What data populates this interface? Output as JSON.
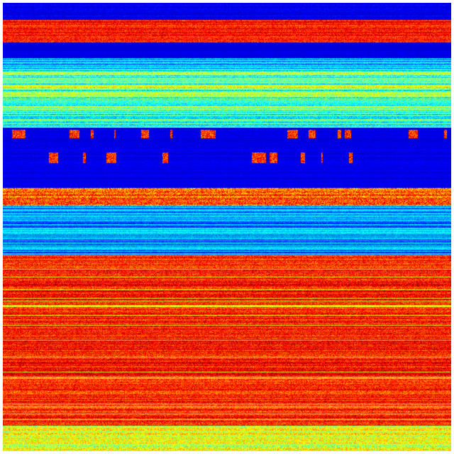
{
  "chart_data": {
    "type": "heatmap",
    "colormap": "jet",
    "colormap_stops": [
      "#00008f",
      "#0000ff",
      "#00ffff",
      "#ffff00",
      "#ff0000",
      "#800000"
    ],
    "axes_visible": false,
    "grid": false,
    "legend": "none"
  }
}
